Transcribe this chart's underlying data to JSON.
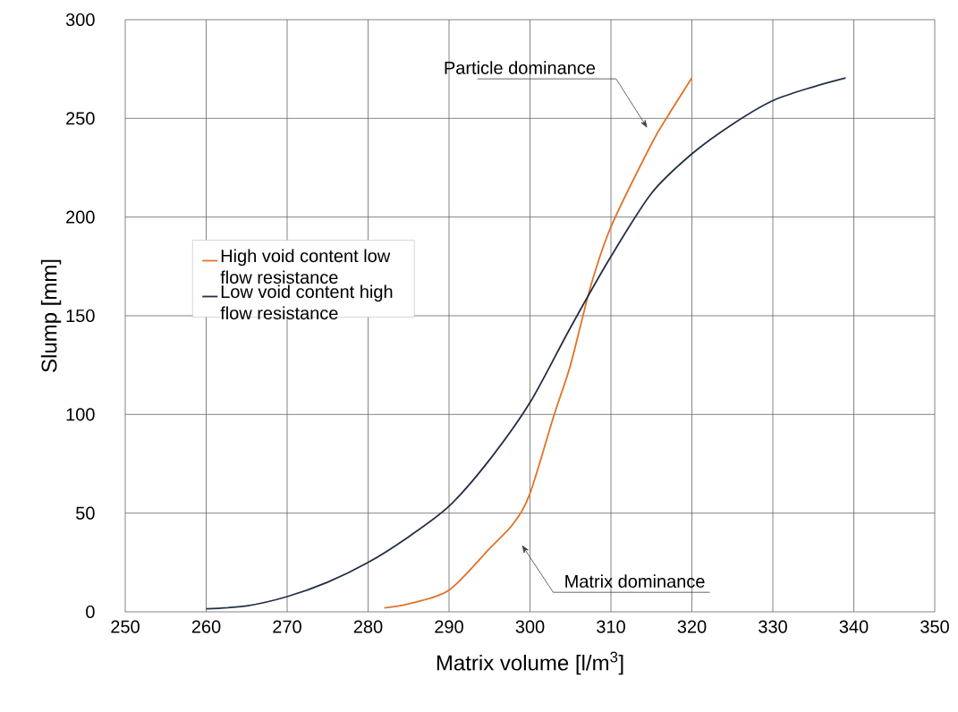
{
  "chart_data": {
    "type": "line",
    "xlabel": "Matrix volume [l/m$^{3}$]",
    "ylabel": "Slump [mm]",
    "xlim": [
      250,
      350
    ],
    "xticks": [
      250,
      260,
      270,
      280,
      290,
      300,
      310,
      320,
      330,
      340,
      350
    ],
    "ylim": [
      0,
      300
    ],
    "yticks": [
      0,
      50,
      100,
      150,
      200,
      250,
      300
    ],
    "grid": true,
    "legend": "left",
    "marker": "none",
    "line_style": "solid",
    "series": [
      {
        "name": "High void content low flow resistance",
        "color": "#e07328",
        "x": [
          282,
          285,
          290,
          295,
          298,
          300,
          303,
          305,
          307.5,
          310,
          315,
          317,
          320
        ],
        "values": [
          2,
          4,
          11,
          32,
          45,
          60,
          100,
          125,
          165,
          195,
          237,
          251,
          270.5
        ]
      },
      {
        "name": "Low void content high flow resistance",
        "color": "#232f45",
        "x": [
          260,
          265,
          270,
          275,
          280,
          285,
          290,
          295,
          300,
          305,
          310,
          315,
          320,
          325,
          330,
          335,
          339
        ],
        "values": [
          1.5,
          3,
          7.7,
          15,
          25,
          38,
          53.5,
          77,
          106,
          144,
          180,
          212,
          232,
          247,
          259,
          266,
          270.5
        ]
      }
    ],
    "annotations": [
      "Particle dominance",
      "Matrix dominance"
    ]
  }
}
